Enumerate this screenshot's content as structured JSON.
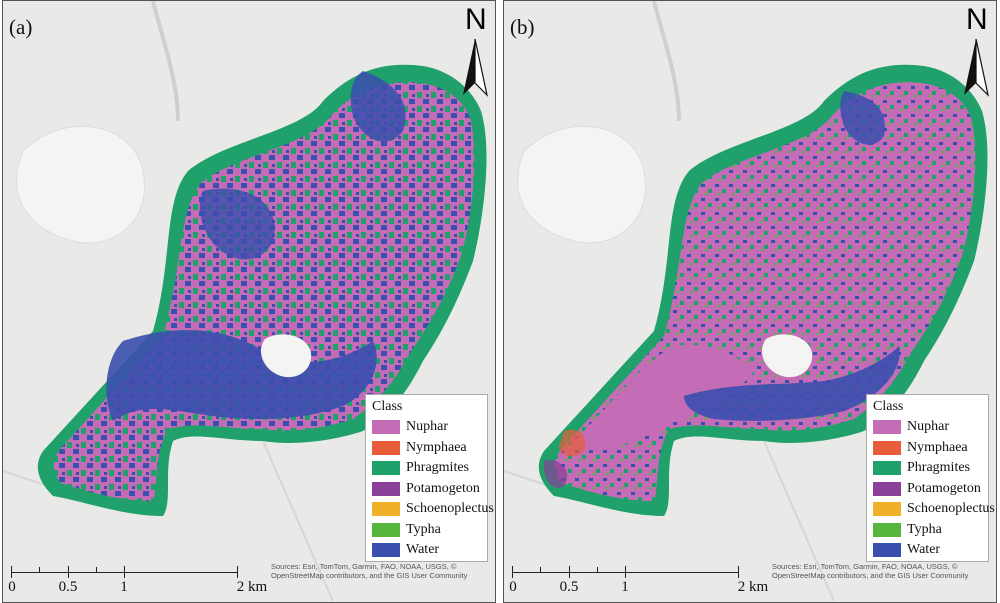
{
  "panels": [
    {
      "id": "a",
      "label": "(a)"
    },
    {
      "id": "b",
      "label": "(b)"
    }
  ],
  "north_label": "N",
  "legend": {
    "title": "Class",
    "items": [
      {
        "label": "Nuphar",
        "color": "#c46cb6"
      },
      {
        "label": "Nymphaea",
        "color": "#e85c3b"
      },
      {
        "label": "Phragmites",
        "color": "#20a06a"
      },
      {
        "label": "Potamogeton",
        "color": "#8a3f98"
      },
      {
        "label": "Schoenoplectus",
        "color": "#f0b02a"
      },
      {
        "label": "Typha",
        "color": "#55b53c"
      },
      {
        "label": "Water",
        "color": "#3b4fae"
      }
    ]
  },
  "scalebar": {
    "labels": [
      "0",
      "0.5",
      "1",
      "2 km"
    ]
  },
  "attribution": "Sources: Esri, TomTom, Garmin, FAO, NOAA, USGS, © OpenStreetMap contributors, and the GIS User Community",
  "colors": {
    "basemap": "#e9e9e7",
    "basemap_light": "#f4f4f3",
    "road": "#cfcfcf"
  }
}
